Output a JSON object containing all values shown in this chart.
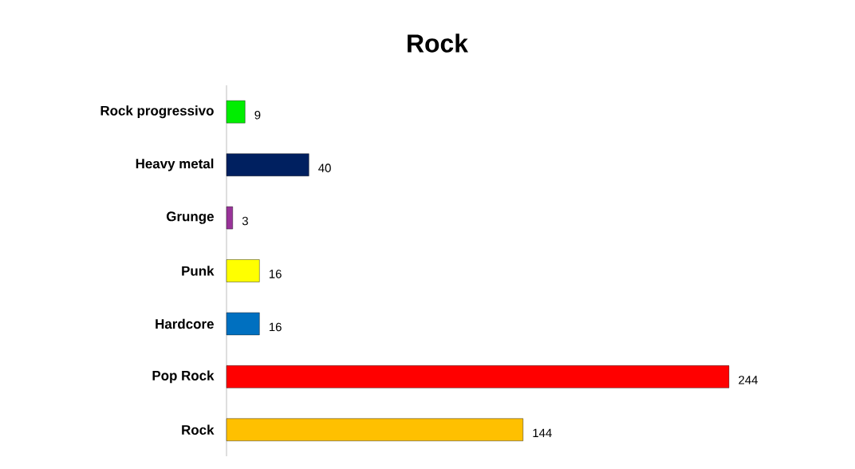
{
  "chart_data": {
    "type": "bar",
    "orientation": "horizontal",
    "title": "Rock",
    "categories": [
      "Rock progressivo",
      "Heavy metal",
      "Grunge",
      "Punk",
      "Hardcore",
      "Pop Rock",
      "Rock"
    ],
    "values": [
      9,
      40,
      3,
      16,
      16,
      244,
      144
    ],
    "colors": [
      "#00ee00",
      "#002060",
      "#993399",
      "#ffff00",
      "#0070c0",
      "#ff0000",
      "#ffc000"
    ],
    "data_labels": true
  }
}
